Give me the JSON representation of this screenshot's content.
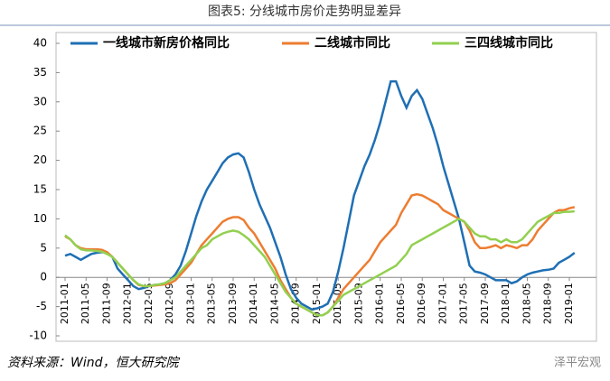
{
  "chart_data": {
    "type": "line",
    "title": "图表5: 分线城市房价走势明显差异",
    "source": "资料来源：Wind，恒大研究院",
    "watermark": "泽平宏观",
    "categories": [
      "2011-01",
      null,
      null,
      null,
      "2011-05",
      null,
      null,
      null,
      "2011-09",
      null,
      null,
      null,
      "2012-01",
      null,
      null,
      null,
      "2012-05",
      null,
      null,
      null,
      "2012-09",
      null,
      null,
      null,
      "2013-01",
      null,
      null,
      null,
      "2013-05",
      null,
      null,
      null,
      "2013-09",
      null,
      null,
      null,
      "2014-01",
      null,
      null,
      null,
      "2014-05",
      null,
      null,
      null,
      "2014-09",
      null,
      null,
      null,
      "2015-01",
      null,
      null,
      null,
      "2015-05",
      null,
      null,
      null,
      "2015-09",
      null,
      null,
      null,
      "2016-01",
      null,
      null,
      null,
      "2016-05",
      null,
      null,
      null,
      "2016-09",
      null,
      null,
      null,
      "2017-01",
      null,
      null,
      null,
      "2017-05",
      null,
      null,
      null,
      "2017-09",
      null,
      null,
      null,
      "2018-01",
      null,
      null,
      null,
      "2018-05",
      null,
      null,
      null,
      "2018-09",
      null,
      null,
      null,
      "2019-01",
      null
    ],
    "series": [
      {
        "name": "一线城市新房价格同比",
        "color": "#1f6fb4",
        "values": [
          3.7,
          4,
          3.5,
          3,
          3.5,
          4,
          4.2,
          4.3,
          4.2,
          3.5,
          1.5,
          0.5,
          -0.5,
          -1.5,
          -2,
          -1.8,
          -1.5,
          -1.3,
          -1.2,
          -1,
          -0.5,
          0.5,
          2,
          4.5,
          7.5,
          10.5,
          13,
          15,
          16.5,
          18,
          19.5,
          20.5,
          21,
          21.2,
          20.5,
          18,
          15,
          12.5,
          10.5,
          8.5,
          6,
          3.5,
          0.5,
          -2,
          -3.5,
          -4.5,
          -5,
          -5.5,
          -5.3,
          -5,
          -4.5,
          -2.5,
          1,
          5,
          9.5,
          14,
          16.5,
          19,
          21,
          23.5,
          26.5,
          30,
          33.5,
          33.5,
          31,
          29,
          31,
          32,
          30.5,
          28,
          25.5,
          22.5,
          19,
          16,
          13,
          10,
          6,
          2,
          1,
          0.8,
          0.5,
          0,
          -0.5,
          -0.5,
          -0.5,
          -1,
          -0.7,
          0,
          0.5,
          0.8,
          1,
          1.2,
          1.3,
          1.5,
          2.5,
          3,
          3.5,
          4.2
        ]
      },
      {
        "name": "二线城市同比",
        "color": "#ed7d31",
        "values": [
          7,
          6.5,
          5.5,
          5,
          4.8,
          4.8,
          4.8,
          4.7,
          4.3,
          3.5,
          2.5,
          1.5,
          0.5,
          -0.5,
          -1.3,
          -1.5,
          -1.5,
          -1.4,
          -1.3,
          -1.2,
          -1,
          -0.5,
          0.5,
          1.5,
          2.5,
          4,
          5.5,
          6.5,
          7.5,
          8.5,
          9.5,
          10,
          10.3,
          10.3,
          9.8,
          8.5,
          7.5,
          6,
          4.5,
          3,
          1.5,
          -0.5,
          -2,
          -3.5,
          -4.5,
          -5,
          -5.5,
          -6,
          -6.5,
          -6.5,
          -6,
          -5,
          -3.5,
          -2,
          -1,
          0,
          1,
          2,
          3,
          4.5,
          6,
          7,
          8,
          9,
          11,
          12.5,
          14,
          14.2,
          14,
          13.5,
          13,
          12.5,
          11.5,
          11,
          10.5,
          10,
          9.5,
          8,
          6,
          5,
          5,
          5.2,
          5.5,
          5,
          5.5,
          5.3,
          5,
          5.5,
          5.5,
          6.5,
          8,
          9,
          10,
          11,
          11.5,
          11.5,
          11.8,
          12
        ]
      },
      {
        "name": "三四线城市同比",
        "color": "#92d050",
        "values": [
          7.2,
          6.5,
          5.5,
          4.8,
          4.6,
          4.6,
          4.5,
          4.4,
          4,
          3.5,
          2.5,
          1.5,
          0.5,
          -0.5,
          -1.2,
          -1.5,
          -1.5,
          -1.3,
          -1.2,
          -1,
          -0.5,
          0,
          1,
          2,
          3,
          4,
          5,
          5.5,
          6.5,
          7,
          7.5,
          7.8,
          8,
          7.8,
          7.2,
          6.5,
          5.5,
          4.5,
          3.5,
          2,
          0.5,
          -1,
          -2.5,
          -3.5,
          -4.5,
          -5,
          -5.5,
          -6,
          -6.5,
          -6.5,
          -6,
          -5,
          -4,
          -3,
          -2.5,
          -2,
          -1.5,
          -1,
          -0.5,
          0,
          0.5,
          1,
          1.5,
          2,
          3,
          4,
          5.5,
          6,
          6.5,
          7,
          7.5,
          8,
          8.5,
          9,
          9.5,
          10,
          9.5,
          8.5,
          7.5,
          7,
          7,
          6.5,
          6.5,
          6,
          6.5,
          6,
          6,
          6.5,
          7.5,
          8.5,
          9.5,
          10,
          10.5,
          11,
          11,
          11.2,
          11.2,
          11.3
        ]
      }
    ],
    "ylim": [
      -10,
      40
    ],
    "yticks": [
      -10,
      -5,
      0,
      5,
      10,
      15,
      20,
      25,
      30,
      35,
      40
    ],
    "legend": "top"
  }
}
